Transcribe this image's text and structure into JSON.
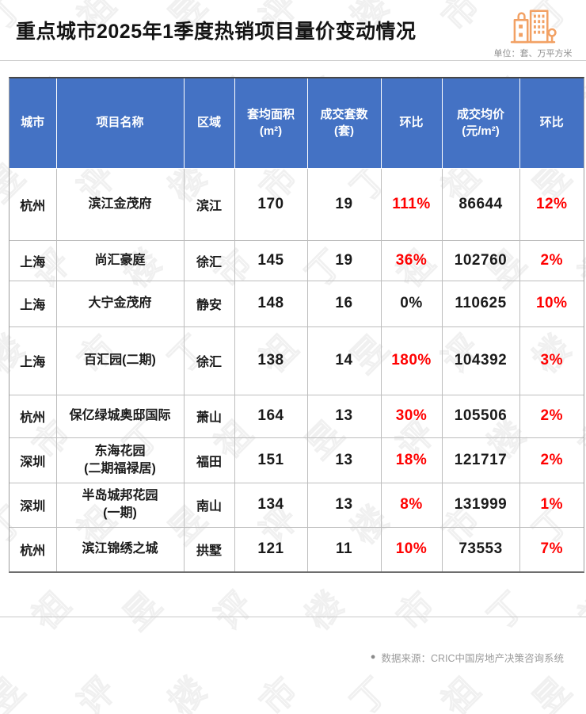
{
  "page": {
    "title": "重点城市2025年1季度热销项目量价变动情况",
    "unit_note": "单位：套、万平方米",
    "bullet": "●",
    "source_note": "数据来源：CRIC中国房地产决策咨询系统"
  },
  "colors": {
    "header_bg": "#4472C4",
    "up_red": "#FF0000",
    "text_black": "#1A1A1A",
    "icon_orange": "#F2A164",
    "divider_gray": "#C9C9C9"
  },
  "watermark": {
    "chars": "丁祖昱评楼市"
  },
  "headers": [
    {
      "label": "城市",
      "sub": ""
    },
    {
      "label": "项目名称",
      "sub": ""
    },
    {
      "label": "区域",
      "sub": ""
    },
    {
      "label": "套均面积",
      "sub": "(m²)"
    },
    {
      "label": "成交套数",
      "sub": "(套)"
    },
    {
      "label": "环比",
      "sub": ""
    },
    {
      "label": "成交均价",
      "sub": "(元/m²)"
    },
    {
      "label": "环比",
      "sub": ""
    }
  ],
  "chart_data": {
    "type": "table",
    "title": "重点城市2025年1季度热销项目量价变动情况",
    "unit": "单位：套、万平方米",
    "source": "数据来源：CRIC中国房地产决策咨询系统",
    "columns": [
      "城市",
      "项目名称",
      "区域",
      "套均面积(m²)",
      "成交套数(套)",
      "环比",
      "成交均价(元/m²)",
      "环比"
    ],
    "rows": [
      [
        "杭州",
        "滨江金茂府",
        "滨江",
        170,
        19,
        "111%",
        86644,
        "12%"
      ],
      [
        "上海",
        "尚汇豪庭",
        "徐汇",
        145,
        19,
        "36%",
        102760,
        "2%"
      ],
      [
        "上海",
        "大宁金茂府",
        "静安",
        148,
        16,
        "0%",
        110625,
        "10%"
      ],
      [
        "上海",
        "百汇园(二期)",
        "徐汇",
        138,
        14,
        "180%",
        104392,
        "3%"
      ],
      [
        "杭州",
        "保亿绿城奥邸国际",
        "萧山",
        164,
        13,
        "30%",
        105506,
        "2%"
      ],
      [
        "深圳",
        "东海花园\n(二期福禄居)",
        "福田",
        151,
        13,
        "18%",
        121717,
        "2%"
      ],
      [
        "深圳",
        "半岛城邦花园\n(一期)",
        "南山",
        134,
        13,
        "8%",
        131999,
        "1%"
      ],
      [
        "杭州",
        "滨江锦绣之城",
        "拱墅",
        121,
        11,
        "10%",
        73553,
        "7%"
      ]
    ]
  },
  "styles": {
    "pct_colors": [
      [
        "#FF0000",
        "#FF0000"
      ],
      [
        "#FF0000",
        "#FF0000"
      ],
      [
        "#1A1A1A",
        "#FF0000"
      ],
      [
        "#FF0000",
        "#FF0000"
      ],
      [
        "#FF0000",
        "#FF0000"
      ],
      [
        "#FF0000",
        "#FF0000"
      ],
      [
        "#FF0000",
        "#FF0000"
      ],
      [
        "#FF0000",
        "#FF0000"
      ]
    ]
  }
}
